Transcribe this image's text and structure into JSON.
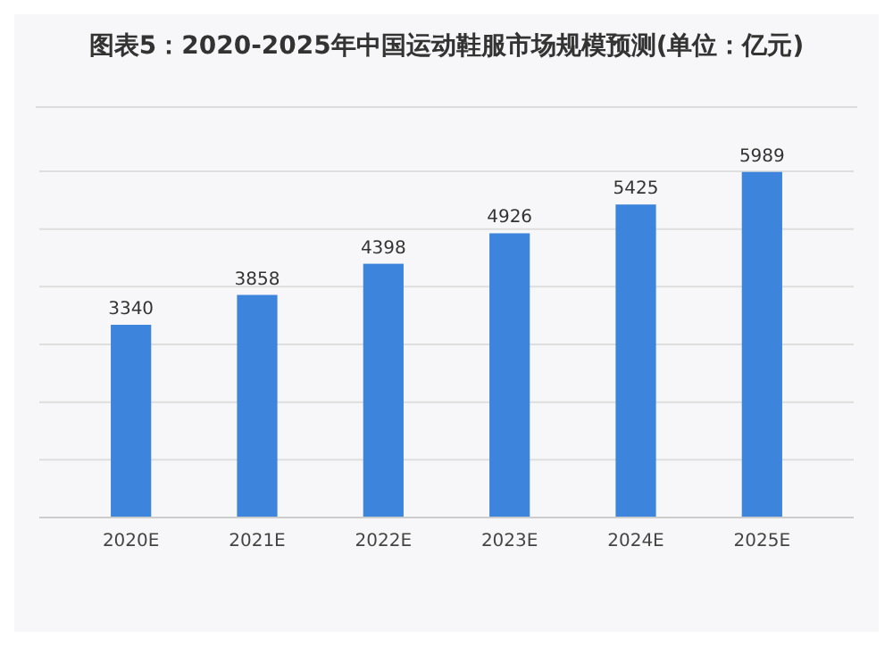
{
  "chart_data": {
    "type": "bar",
    "title": "图表5：2020-2025年中国运动鞋服市场规模预测(单位：亿元)",
    "categories": [
      "2020E",
      "2021E",
      "2022E",
      "2023E",
      "2024E",
      "2025E"
    ],
    "values": [
      3340,
      3858,
      4398,
      4926,
      5425,
      5989
    ],
    "color": "#3d85dc",
    "ylim": [
      0,
      6000
    ],
    "yticks": [
      {
        "value": 0,
        "label": null
      },
      {
        "value": 1000,
        "label": null
      },
      {
        "value": 2000,
        "label": null
      },
      {
        "value": 3000,
        "label": null
      },
      {
        "value": 4000,
        "label": null
      },
      {
        "value": 5000,
        "label": null
      },
      {
        "value": 6000,
        "label": null
      }
    ],
    "tick_labels": "x",
    "grid": "y",
    "data_labels": true
  }
}
